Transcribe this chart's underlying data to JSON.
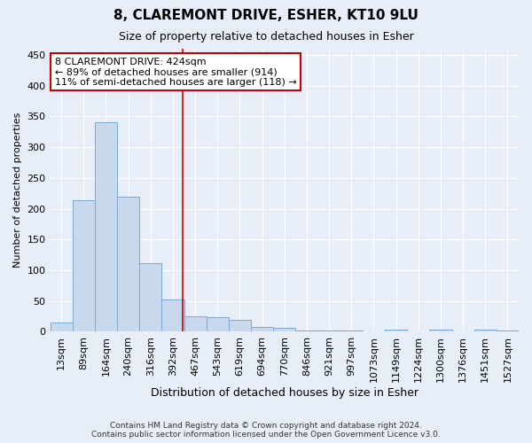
{
  "title": "8, CLAREMONT DRIVE, ESHER, KT10 9LU",
  "subtitle": "Size of property relative to detached houses in Esher",
  "xlabel": "Distribution of detached houses by size in Esher",
  "ylabel": "Number of detached properties",
  "bar_color": "#c8d9ee",
  "bar_edge_color": "#7baad4",
  "background_color": "#e8eef8",
  "plot_bg_color": "#e8eef8",
  "grid_color": "#ffffff",
  "categories": [
    "13sqm",
    "89sqm",
    "164sqm",
    "240sqm",
    "316sqm",
    "392sqm",
    "467sqm",
    "543sqm",
    "619sqm",
    "694sqm",
    "770sqm",
    "846sqm",
    "921sqm",
    "997sqm",
    "1073sqm",
    "1149sqm",
    "1224sqm",
    "1300sqm",
    "1376sqm",
    "1451sqm",
    "1527sqm"
  ],
  "values": [
    15,
    214,
    340,
    220,
    112,
    53,
    25,
    24,
    19,
    8,
    6,
    2,
    2,
    2,
    0,
    3,
    0,
    3,
    0,
    3,
    2
  ],
  "vline_x": 5.43,
  "vline_color": "#cc0000",
  "annotation_line1": "8 CLAREMONT DRIVE: 424sqm",
  "annotation_line2": "← 89% of detached houses are smaller (914)",
  "annotation_line3": "11% of semi-detached houses are larger (118) →",
  "annotation_box_facecolor": "#ffffff",
  "annotation_box_edgecolor": "#cc0000",
  "footer_line1": "Contains HM Land Registry data © Crown copyright and database right 2024.",
  "footer_line2": "Contains public sector information licensed under the Open Government Licence v3.0.",
  "ylim": [
    0,
    460
  ],
  "yticks": [
    0,
    50,
    100,
    150,
    200,
    250,
    300,
    350,
    400,
    450
  ],
  "title_fontsize": 11,
  "subtitle_fontsize": 9,
  "xlabel_fontsize": 9,
  "ylabel_fontsize": 8,
  "tick_fontsize": 8,
  "annotation_fontsize": 8
}
